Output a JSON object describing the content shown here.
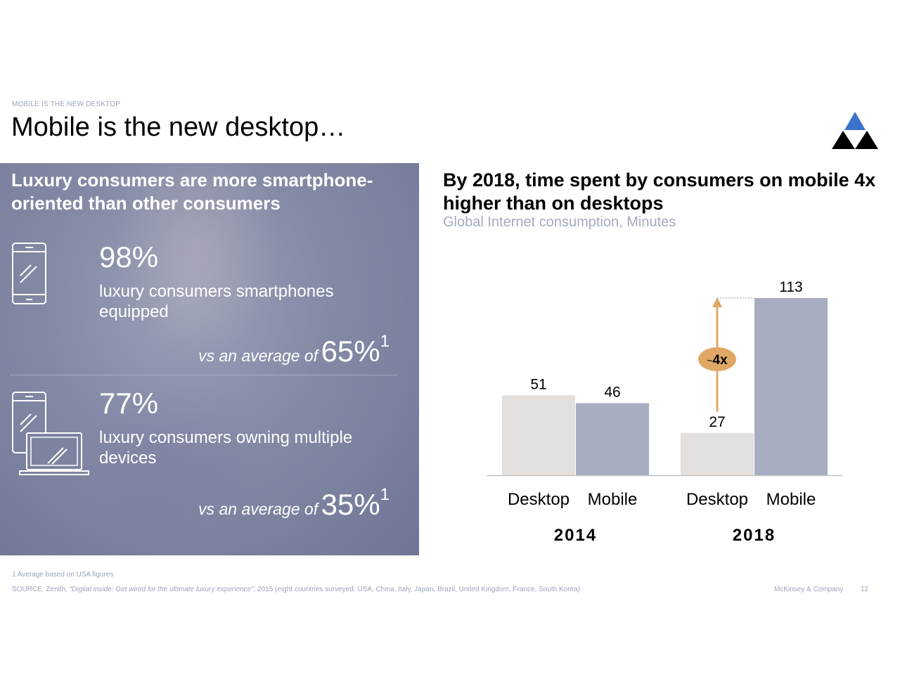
{
  "header": {
    "tracker": "MOBILE IS THE NEW DESKTOP",
    "title": "Mobile is the new desktop…"
  },
  "left_panel": {
    "heading": "Luxury consumers are more smartphone-oriented than other consumers",
    "stats": [
      {
        "value": "98%",
        "description": "luxury consumers smartphones equipped",
        "compare_label": "vs an average of",
        "compare_value": "65%",
        "compare_note": "1",
        "icon": "smartphone-icon"
      },
      {
        "value": "77%",
        "description": "luxury consumers owning multiple devices",
        "compare_label": "vs an average of",
        "compare_value": "35%",
        "compare_note": "1",
        "icon": "multiple-devices-icon"
      }
    ]
  },
  "chart_data": {
    "type": "bar",
    "title": "By 2018, time spent by consumers on mobile 4x higher than on desktops",
    "subtitle": "Global Internet consumption, Minutes",
    "groups": [
      "2014",
      "2018"
    ],
    "categories": [
      "Desktop",
      "Mobile"
    ],
    "series": [
      {
        "name": "Desktop",
        "values": [
          51,
          27
        ]
      },
      {
        "name": "Mobile",
        "values": [
          46,
          113
        ]
      }
    ],
    "annotation": {
      "prefix": "~",
      "text": "4x"
    },
    "colors": {
      "Desktop": "#e4e0dd",
      "Mobile": "#a8adc2",
      "annotation": "#e0a866"
    },
    "ylim": [
      0,
      113
    ],
    "grid": false,
    "legend": "none"
  },
  "footer": {
    "footnote": "1 Average based on USA figures",
    "source_prefix": "SOURCE: Zenith, ",
    "source_title": "“Digital inside: Get wired for the ultimate luxury experience”",
    "source_suffix": ", 2015 (eight countries surveyed: USA, China, Italy, Japan, Brazil, United Kingdom, France, South Korea)",
    "company": "McKinsey & Company",
    "page": "12"
  }
}
